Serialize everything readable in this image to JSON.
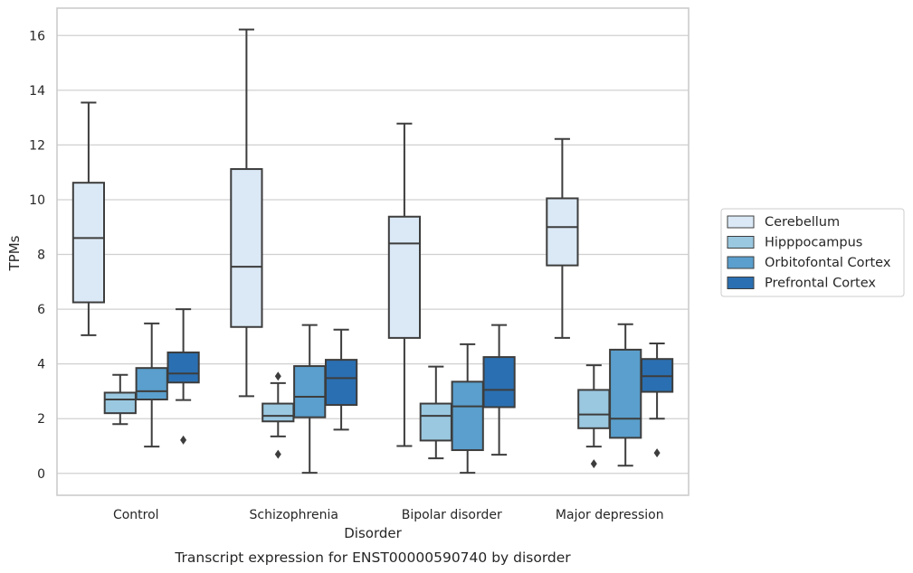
{
  "chart_data": {
    "type": "box",
    "xlabel": "Disorder",
    "ylabel": "TPMs",
    "caption": "Transcript expression for ENST00000590740 by disorder",
    "ylim": [
      -0.8,
      17
    ],
    "yticks": [
      "0",
      "2",
      "4",
      "6",
      "8",
      "10",
      "12",
      "14",
      "16"
    ],
    "grid": "horizontal",
    "legend_placement": "right",
    "categories": [
      "Control",
      "Schizophrenia",
      "Bipolar disorder",
      "Major depression"
    ],
    "series": [
      {
        "name": "Cerebellum",
        "color": "#dbe9f6",
        "boxes": [
          {
            "whisker_low": 5.05,
            "q1": 6.25,
            "median": 8.6,
            "q3": 10.62,
            "whisker_high": 13.55,
            "outliers": []
          },
          {
            "whisker_low": 2.82,
            "q1": 5.35,
            "median": 7.55,
            "q3": 11.12,
            "whisker_high": 16.22,
            "outliers": []
          },
          {
            "whisker_low": 1.0,
            "q1": 4.95,
            "median": 8.4,
            "q3": 9.38,
            "whisker_high": 12.78,
            "outliers": []
          },
          {
            "whisker_low": 4.95,
            "q1": 7.6,
            "median": 9.0,
            "q3": 10.05,
            "whisker_high": 12.22,
            "outliers": []
          }
        ]
      },
      {
        "name": "Hipppocampus",
        "color": "#9ac8e0",
        "boxes": [
          {
            "whisker_low": 1.8,
            "q1": 2.2,
            "median": 2.7,
            "q3": 2.95,
            "whisker_high": 3.6,
            "outliers": []
          },
          {
            "whisker_low": 1.35,
            "q1": 1.9,
            "median": 2.1,
            "q3": 2.55,
            "whisker_high": 3.3,
            "outliers": [
              0.7,
              3.55
            ]
          },
          {
            "whisker_low": 0.55,
            "q1": 1.2,
            "median": 2.1,
            "q3": 2.55,
            "whisker_high": 3.9,
            "outliers": []
          },
          {
            "whisker_low": 0.98,
            "q1": 1.65,
            "median": 2.15,
            "q3": 3.05,
            "whisker_high": 3.95,
            "outliers": [
              0.35
            ]
          }
        ]
      },
      {
        "name": "Orbitofontal Cortex",
        "color": "#5a9fcd",
        "boxes": [
          {
            "whisker_low": 0.98,
            "q1": 2.7,
            "median": 3.0,
            "q3": 3.85,
            "whisker_high": 5.48,
            "outliers": []
          },
          {
            "whisker_low": 0.02,
            "q1": 2.05,
            "median": 2.8,
            "q3": 3.92,
            "whisker_high": 5.42,
            "outliers": []
          },
          {
            "whisker_low": 0.02,
            "q1": 0.85,
            "median": 2.45,
            "q3": 3.35,
            "whisker_high": 4.72,
            "outliers": []
          },
          {
            "whisker_low": 0.28,
            "q1": 1.3,
            "median": 2.0,
            "q3": 4.52,
            "whisker_high": 5.45,
            "outliers": []
          }
        ]
      },
      {
        "name": "Prefrontal Cortex",
        "color": "#2a6fb1",
        "boxes": [
          {
            "whisker_low": 2.68,
            "q1": 3.32,
            "median": 3.65,
            "q3": 4.42,
            "whisker_high": 6.0,
            "outliers": [
              1.22
            ]
          },
          {
            "whisker_low": 1.6,
            "q1": 2.5,
            "median": 3.48,
            "q3": 4.15,
            "whisker_high": 5.25,
            "outliers": []
          },
          {
            "whisker_low": 0.68,
            "q1": 2.42,
            "median": 3.05,
            "q3": 4.25,
            "whisker_high": 5.42,
            "outliers": []
          },
          {
            "whisker_low": 2.0,
            "q1": 2.98,
            "median": 3.55,
            "q3": 4.18,
            "whisker_high": 4.75,
            "outliers": [
              0.75
            ]
          }
        ]
      }
    ]
  }
}
